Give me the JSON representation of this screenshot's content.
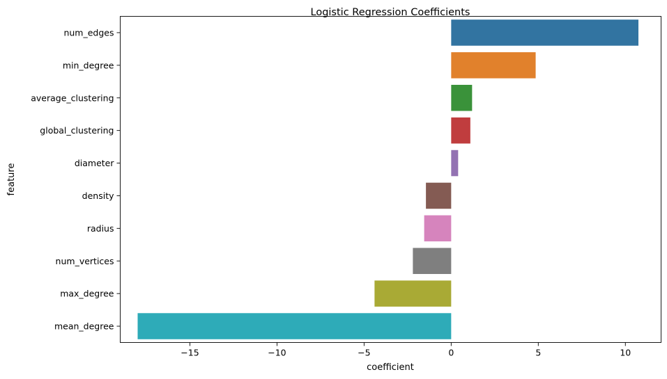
{
  "chart_data": {
    "type": "bar",
    "orientation": "horizontal",
    "title": "Logistic Regression Coefficients",
    "xlabel": "coefficient",
    "ylabel": "feature",
    "categories": [
      "num_edges",
      "min_degree",
      "average_clustering",
      "global_clustering",
      "diameter",
      "density",
      "radius",
      "num_vertices",
      "max_degree",
      "mean_degree"
    ],
    "values": [
      10.75,
      4.85,
      1.2,
      1.1,
      0.4,
      -1.45,
      -1.55,
      -2.2,
      -4.4,
      -18.0
    ],
    "colors": [
      "#3274a1",
      "#e1812c",
      "#3a923a",
      "#c03d3e",
      "#9372b2",
      "#845b53",
      "#d684bd",
      "#7f7f7f",
      "#a9aa35",
      "#2eabb8"
    ],
    "xlim": [
      -19.0,
      12.05
    ],
    "xticks": [
      -15,
      -10,
      -5,
      0,
      5,
      10
    ],
    "xtick_labels": [
      "−15",
      "−10",
      "−5",
      "0",
      "5",
      "10"
    ],
    "grid": false,
    "legend": "none"
  }
}
